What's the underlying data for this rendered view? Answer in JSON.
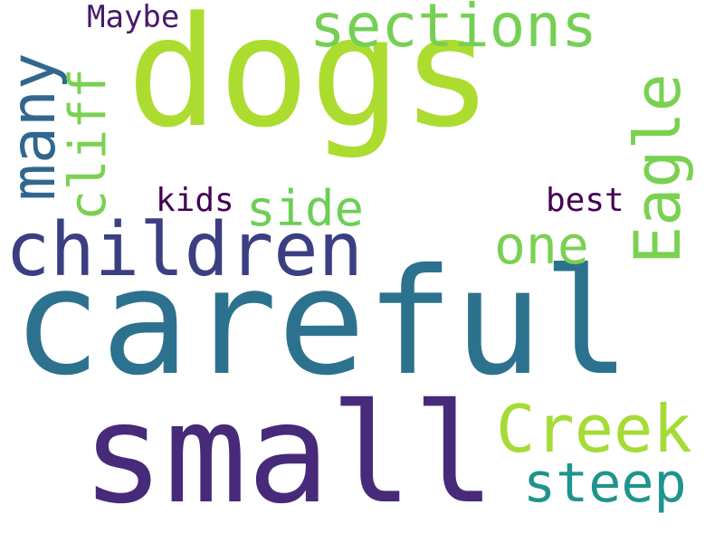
{
  "words": {
    "dogs": {
      "text": "dogs",
      "color": "#addc30"
    },
    "careful": {
      "text": "careful",
      "color": "#2c728e"
    },
    "small": {
      "text": "small",
      "color": "#472a7a"
    },
    "children": {
      "text": "children",
      "color": "#3b3f82"
    },
    "sections": {
      "text": "sections",
      "color": "#75d054"
    },
    "many": {
      "text": "many",
      "color": "#31678e"
    },
    "eagle": {
      "text": "Eagle",
      "color": "#7ad151"
    },
    "cliff": {
      "text": "cliff",
      "color": "#7ad151"
    },
    "creek": {
      "text": "Creek",
      "color": "#a5db36"
    },
    "steep": {
      "text": "steep",
      "color": "#1f948c"
    },
    "one": {
      "text": "one",
      "color": "#7ad151"
    },
    "side": {
      "text": "side",
      "color": "#6ece58"
    },
    "maybe": {
      "text": "Maybe",
      "color": "#481a6c"
    },
    "kids": {
      "text": "kids",
      "color": "#440154"
    },
    "best": {
      "text": "best",
      "color": "#440154"
    }
  }
}
